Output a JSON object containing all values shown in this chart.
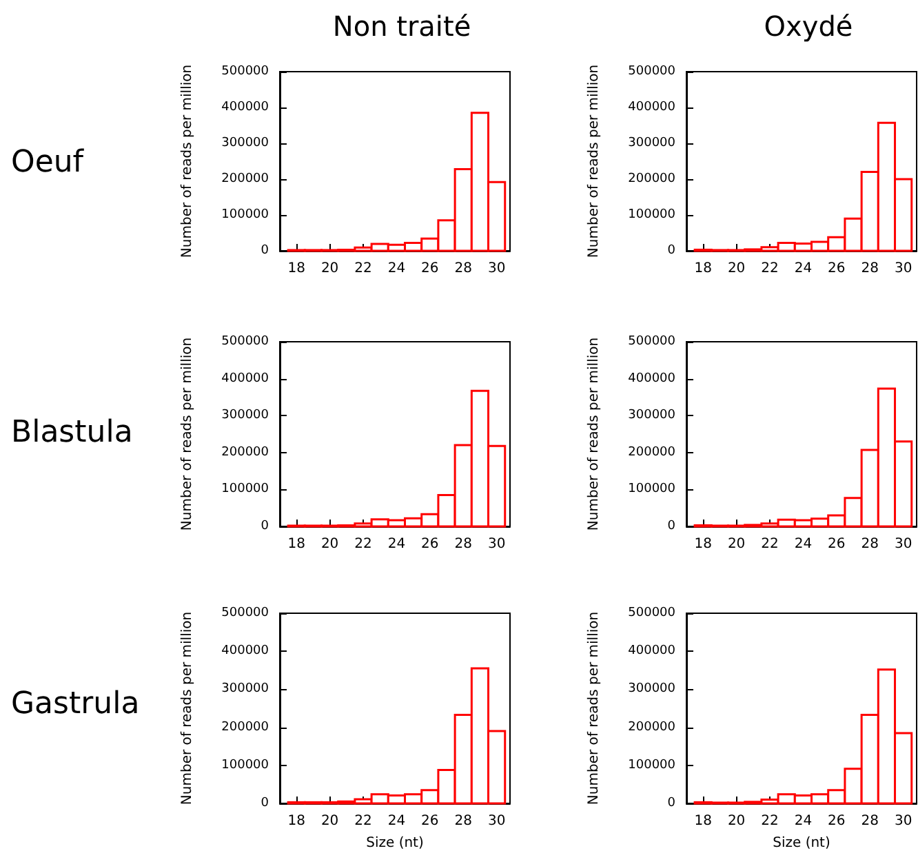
{
  "chart_data": [
    {
      "type": "histogram",
      "title": "Non traité",
      "annotations": [
        "Oeuf"
      ],
      "ylabel": "Number of reads per million",
      "color": "#ff0000",
      "bins": [
        17.5,
        18.5,
        19.5,
        20.5,
        21.5,
        22.5,
        23.5,
        24.5,
        25.5,
        26.5,
        27.5,
        28.5,
        29.5,
        30.5
      ],
      "values": [
        2000,
        2000,
        2000,
        3000,
        9000,
        19000,
        17000,
        22000,
        34000,
        85000,
        228000,
        385000,
        192000
      ],
      "xlim": [
        17,
        30.8
      ],
      "ylim": [
        0,
        500000
      ],
      "xticks": [
        18,
        20,
        22,
        24,
        26,
        28,
        30
      ],
      "yticks": [
        0,
        100000,
        200000,
        300000,
        400000,
        500000
      ]
    },
    {
      "type": "histogram",
      "title": "Oxydé",
      "ylabel": "Number of reads per million",
      "color": "#ff0000",
      "bins": [
        17.5,
        18.5,
        19.5,
        20.5,
        21.5,
        22.5,
        23.5,
        24.5,
        25.5,
        26.5,
        27.5,
        28.5,
        29.5,
        30.5
      ],
      "values": [
        3000,
        2000,
        2000,
        4000,
        10000,
        22000,
        20000,
        25000,
        38000,
        90000,
        220000,
        357000,
        200000
      ],
      "xlim": [
        17,
        30.8
      ],
      "ylim": [
        0,
        500000
      ],
      "xticks": [
        18,
        20,
        22,
        24,
        26,
        28,
        30
      ],
      "yticks": [
        0,
        100000,
        200000,
        300000,
        400000,
        500000
      ]
    },
    {
      "type": "histogram",
      "annotations": [
        "Blastula"
      ],
      "ylabel": "Number of reads per million",
      "color": "#ff0000",
      "bins": [
        17.5,
        18.5,
        19.5,
        20.5,
        21.5,
        22.5,
        23.5,
        24.5,
        25.5,
        26.5,
        27.5,
        28.5,
        29.5,
        30.5
      ],
      "values": [
        2000,
        2000,
        2000,
        3000,
        8000,
        19000,
        17000,
        22000,
        33000,
        85000,
        220000,
        367000,
        218000
      ],
      "xlim": [
        17,
        30.8
      ],
      "ylim": [
        0,
        500000
      ],
      "xticks": [
        18,
        20,
        22,
        24,
        26,
        28,
        30
      ],
      "yticks": [
        0,
        100000,
        200000,
        300000,
        400000,
        500000
      ]
    },
    {
      "type": "histogram",
      "ylabel": "Number of reads per million",
      "color": "#ff0000",
      "bins": [
        17.5,
        18.5,
        19.5,
        20.5,
        21.5,
        22.5,
        23.5,
        24.5,
        25.5,
        26.5,
        27.5,
        28.5,
        29.5,
        30.5
      ],
      "values": [
        3000,
        2000,
        2000,
        4000,
        8000,
        18000,
        17000,
        21000,
        30000,
        77000,
        207000,
        373000,
        230000
      ],
      "xlim": [
        17,
        30.8
      ],
      "ylim": [
        0,
        500000
      ],
      "xticks": [
        18,
        20,
        22,
        24,
        26,
        28,
        30
      ],
      "yticks": [
        0,
        100000,
        200000,
        300000,
        400000,
        500000
      ]
    },
    {
      "type": "histogram",
      "annotations": [
        "Gastrula"
      ],
      "xlabel": "Size (nt)",
      "ylabel": "Number of reads per million",
      "color": "#ff0000",
      "bins": [
        17.5,
        18.5,
        19.5,
        20.5,
        21.5,
        22.5,
        23.5,
        24.5,
        25.5,
        26.5,
        27.5,
        28.5,
        29.5,
        30.5
      ],
      "values": [
        3000,
        3000,
        3000,
        5000,
        11000,
        24000,
        21000,
        24000,
        35000,
        88000,
        233000,
        355000,
        190000
      ],
      "xlim": [
        17,
        30.8
      ],
      "ylim": [
        0,
        500000
      ],
      "xticks": [
        18,
        20,
        22,
        24,
        26,
        28,
        30
      ],
      "yticks": [
        0,
        100000,
        200000,
        300000,
        400000,
        500000
      ]
    },
    {
      "type": "histogram",
      "xlabel": "Size (nt)",
      "ylabel": "Number of reads per million",
      "color": "#ff0000",
      "bins": [
        17.5,
        18.5,
        19.5,
        20.5,
        21.5,
        22.5,
        23.5,
        24.5,
        25.5,
        26.5,
        27.5,
        28.5,
        29.5,
        30.5
      ],
      "values": [
        3000,
        2000,
        2000,
        4000,
        10000,
        24000,
        21000,
        24000,
        35000,
        91000,
        233000,
        352000,
        185000
      ],
      "xlim": [
        17,
        30.8
      ],
      "ylim": [
        0,
        500000
      ],
      "xticks": [
        18,
        20,
        22,
        24,
        26,
        28,
        30
      ],
      "yticks": [
        0,
        100000,
        200000,
        300000,
        400000,
        500000
      ]
    }
  ]
}
